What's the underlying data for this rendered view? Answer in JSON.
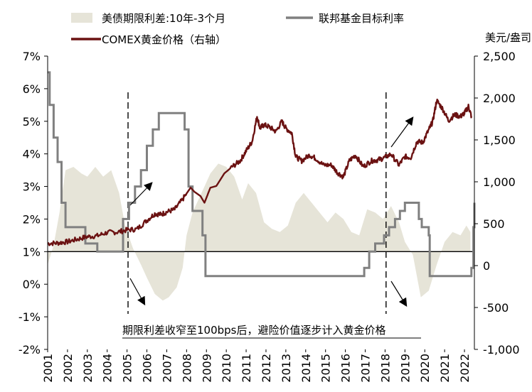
{
  "chart_data": {
    "type": "line",
    "title": "",
    "legend": {
      "spread": "美债期限利差:10年-3个月",
      "fed": "联邦基金目标利率",
      "gold": "COMEX黄金价格（右轴）"
    },
    "y_left": {
      "min": -2,
      "max": 7,
      "ticks": [
        "7%",
        "6%",
        "5%",
        "4%",
        "3%",
        "2%",
        "1%",
        "0%",
        "-1%",
        "-2%"
      ]
    },
    "y_right": {
      "unit": "美元/盎司",
      "min": -1000,
      "max": 2500,
      "ticks": [
        "2,500",
        "2,000",
        "1,500",
        "1,000",
        "500",
        "0",
        "-500",
        "-1,000"
      ]
    },
    "x_ticks": [
      "2001",
      "2002",
      "2003",
      "2004",
      "2005",
      "2006",
      "2007",
      "2008",
      "2009",
      "2010",
      "2011",
      "2012",
      "2013",
      "2014",
      "2015",
      "2016",
      "2017",
      "2018",
      "2019",
      "2020",
      "2021",
      "2022"
    ],
    "annotation": "期限利差收窄至100bps后，避险价值逐步计入黄金价格",
    "series": [
      {
        "name": "美债期限利差:10年-3个月",
        "axis": "left",
        "style": "area",
        "color": "#e6e4d8",
        "x": [
          2001.0,
          2001.3,
          2001.6,
          2001.9,
          2002.3,
          2002.7,
          2003.0,
          2003.4,
          2003.8,
          2004.2,
          2004.6,
          2004.9,
          2005.3,
          2005.7,
          2006.0,
          2006.4,
          2006.8,
          2007.1,
          2007.5,
          2007.8,
          2008.0,
          2008.3,
          2008.6,
          2008.9,
          2009.2,
          2009.6,
          2010.0,
          2010.4,
          2010.8,
          2011.1,
          2011.5,
          2011.9,
          2012.3,
          2012.7,
          2013.1,
          2013.5,
          2013.9,
          2014.3,
          2014.7,
          2015.1,
          2015.5,
          2015.9,
          2016.3,
          2016.7,
          2017.1,
          2017.5,
          2017.9,
          2018.3,
          2018.7,
          2019.0,
          2019.4,
          2019.8,
          2020.2,
          2020.6,
          2021.0,
          2021.4,
          2021.8,
          2022.1,
          2022.3
        ],
        "y": [
          0.6,
          1.2,
          2.2,
          3.5,
          3.6,
          3.4,
          3.3,
          3.6,
          3.3,
          3.5,
          2.8,
          1.8,
          1.1,
          0.6,
          0.2,
          -0.3,
          -0.5,
          -0.4,
          -0.1,
          0.5,
          1.5,
          2.2,
          2.6,
          3.0,
          3.4,
          3.7,
          3.6,
          3.3,
          2.6,
          3.1,
          2.8,
          1.9,
          1.7,
          1.6,
          1.8,
          2.5,
          2.8,
          2.5,
          2.2,
          1.9,
          2.2,
          2.0,
          1.6,
          1.5,
          2.3,
          2.2,
          2.0,
          2.4,
          1.9,
          1.3,
          0.9,
          -0.4,
          -0.2,
          0.6,
          1.3,
          1.6,
          1.5,
          1.8,
          1.6
        ]
      },
      {
        "name": "联邦基金目标利率",
        "axis": "left",
        "style": "step",
        "color": "#808080",
        "x": [
          2001.0,
          2001.1,
          2001.3,
          2001.5,
          2001.7,
          2001.9,
          2002.9,
          2003.5,
          2004.5,
          2004.8,
          2005.1,
          2005.4,
          2005.7,
          2006.0,
          2006.3,
          2006.6,
          2007.7,
          2007.9,
          2008.1,
          2008.3,
          2008.8,
          2008.95,
          2015.95,
          2016.95,
          2017.2,
          2017.5,
          2017.95,
          2018.2,
          2018.5,
          2018.75,
          2019.0,
          2019.55,
          2019.7,
          2019.85,
          2020.2,
          2020.25,
          2022.2,
          2022.35,
          2022.45,
          2022.5
        ],
        "y": [
          6.5,
          5.5,
          4.5,
          3.75,
          2.5,
          1.75,
          1.25,
          1.0,
          1.0,
          2.0,
          2.5,
          3.0,
          3.5,
          4.25,
          4.75,
          5.25,
          5.25,
          4.75,
          3.0,
          2.25,
          1.5,
          0.25,
          0.25,
          0.5,
          1.0,
          1.25,
          1.5,
          1.75,
          2.0,
          2.25,
          2.5,
          2.5,
          2.0,
          1.75,
          1.5,
          0.25,
          0.25,
          0.5,
          1.75,
          2.5
        ]
      },
      {
        "name": "COMEX黄金价格（右轴）",
        "axis": "right",
        "style": "line",
        "color": "#6b1212",
        "x": [
          2001.0,
          2001.5,
          2002.0,
          2002.5,
          2003.0,
          2003.5,
          2004.0,
          2004.5,
          2005.0,
          2005.5,
          2006.0,
          2006.4,
          2006.7,
          2007.0,
          2007.4,
          2007.8,
          2008.2,
          2008.4,
          2008.7,
          2008.9,
          2009.2,
          2009.5,
          2009.9,
          2010.3,
          2010.7,
          2011.0,
          2011.3,
          2011.55,
          2011.7,
          2011.9,
          2012.2,
          2012.5,
          2012.8,
          2013.0,
          2013.3,
          2013.5,
          2013.8,
          2014.2,
          2014.5,
          2014.9,
          2015.3,
          2015.6,
          2015.9,
          2016.2,
          2016.5,
          2016.9,
          2017.3,
          2017.6,
          2017.9,
          2018.3,
          2018.7,
          2019.0,
          2019.3,
          2019.6,
          2019.9,
          2020.2,
          2020.4,
          2020.6,
          2020.9,
          2021.2,
          2021.5,
          2021.8,
          2022.0,
          2022.2,
          2022.35
        ],
        "y": [
          265,
          270,
          285,
          315,
          345,
          355,
          395,
          400,
          425,
          435,
          540,
          620,
          610,
          640,
          670,
          790,
          930,
          880,
          830,
          750,
          930,
          950,
          1100,
          1180,
          1250,
          1370,
          1480,
          1780,
          1640,
          1680,
          1650,
          1600,
          1720,
          1640,
          1580,
          1300,
          1250,
          1320,
          1280,
          1200,
          1200,
          1110,
          1060,
          1250,
          1320,
          1180,
          1250,
          1260,
          1280,
          1330,
          1200,
          1300,
          1290,
          1480,
          1470,
          1620,
          1720,
          1970,
          1870,
          1730,
          1800,
          1780,
          1820,
          1900,
          1780
        ]
      }
    ]
  }
}
